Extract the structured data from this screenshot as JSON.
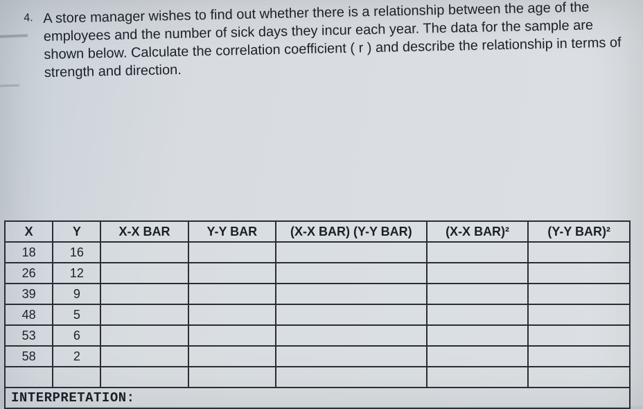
{
  "question": {
    "number": "4.",
    "text": "A store manager wishes to find out whether there is a relationship between the age of the employees and the number of sick days they incur each year. The data for the sample are shown below. Calculate the correlation coefficient ( r ) and describe the relationship in terms of strength and direction."
  },
  "table": {
    "headers": {
      "x": "X",
      "y": "Y",
      "xxbar": "X-X BAR",
      "yybar": "Y-Y BAR",
      "prod": "(X-X BAR) (Y-Y BAR)",
      "xxbar2": "(X-X BAR)²",
      "yybar2": "(Y-Y BAR)²"
    },
    "rows": [
      {
        "x": "18",
        "y": "16"
      },
      {
        "x": "26",
        "y": "12"
      },
      {
        "x": "39",
        "y": "9"
      },
      {
        "x": "48",
        "y": "5"
      },
      {
        "x": "53",
        "y": "6"
      },
      {
        "x": "58",
        "y": "2"
      }
    ],
    "interpretation_label": "INTERPRETATION:"
  },
  "colors": {
    "text": "#1a2028",
    "border": "#2a2e34",
    "bg_light": "#dce0e4",
    "bg_dark": "#b8c0c8"
  }
}
